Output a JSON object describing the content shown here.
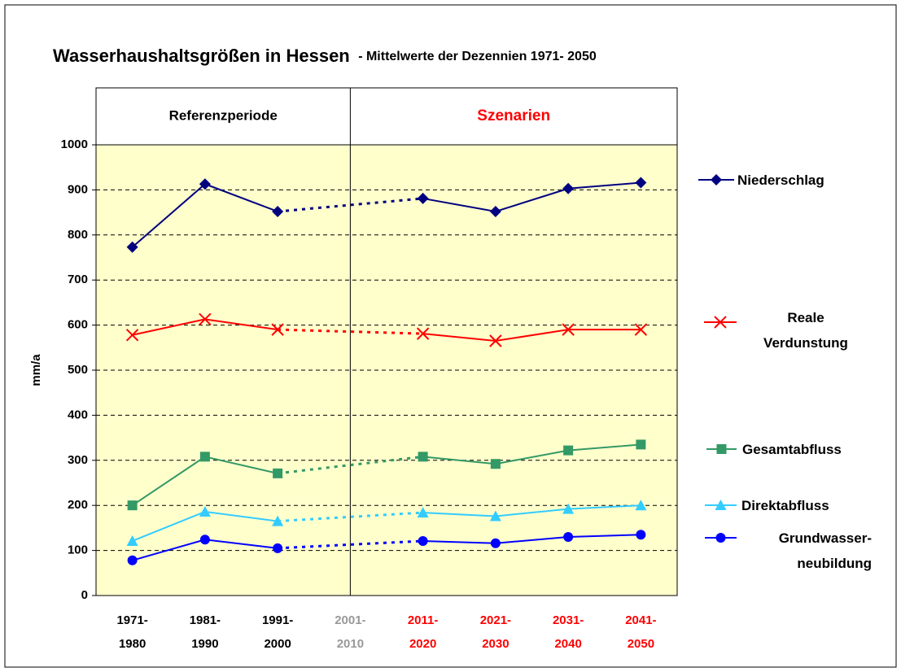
{
  "chart_data": {
    "type": "line",
    "title": "Wasserhaushaltsgrößen in Hessen",
    "subtitle": " - Mittelwerte der Dezennien 1971- 2050",
    "panels": [
      {
        "label": "Referenzperiode",
        "color": "#000000"
      },
      {
        "label": "Szenarien",
        "color": "#ff0000"
      }
    ],
    "y_label": "mm/a",
    "categories": [
      "1971-\n1980",
      "1981-\n1990",
      "1991-\n2000",
      "2001-\n2010",
      "2011-\n2020",
      "2021-\n2030",
      "2031-\n2040",
      "2041-\n2050"
    ],
    "category_colors": [
      "#000000",
      "#000000",
      "#000000",
      "#999999",
      "#ff0000",
      "#ff0000",
      "#ff0000",
      "#ff0000"
    ],
    "ylim": [
      0,
      1000
    ],
    "yticks": [
      0,
      100,
      200,
      300,
      400,
      500,
      600,
      700,
      800,
      900,
      1000
    ],
    "grid": true,
    "gap_line": "dotted",
    "background": "#ffffcc",
    "series": [
      {
        "name": "Niederschlag",
        "color": "#000080",
        "marker": "diamond",
        "values": [
          773,
          913,
          852,
          null,
          881,
          852,
          903,
          916
        ]
      },
      {
        "name": "Reale\nVerdunstung",
        "color": "#ff0000",
        "marker": "x",
        "values": [
          578,
          613,
          590,
          null,
          581,
          565,
          590,
          590
        ]
      },
      {
        "name": "Gesamtabfluss",
        "color": "#339966",
        "marker": "square",
        "values": [
          200,
          308,
          271,
          null,
          308,
          292,
          322,
          335
        ]
      },
      {
        "name": "Direktabfluss",
        "color": "#33ccff",
        "marker": "triangle",
        "values": [
          121,
          186,
          165,
          null,
          184,
          176,
          192,
          200
        ]
      },
      {
        "name": "Grundwasser-\nneubildung",
        "color": "#0000ff",
        "marker": "circle",
        "values": [
          78,
          124,
          105,
          null,
          121,
          116,
          130,
          135
        ]
      }
    ]
  }
}
